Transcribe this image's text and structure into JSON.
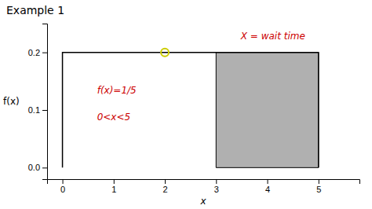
{
  "chart_data": {
    "type": "line",
    "title": "Example 1",
    "xlabel": "x",
    "ylabel": "f(x)",
    "xlim": [
      -0.3,
      5.8
    ],
    "ylim": [
      -0.02,
      0.25
    ],
    "xticks": [
      0,
      1,
      2,
      3,
      4,
      5
    ],
    "yticks": [
      {
        "value": 0.0,
        "label": "0.0"
      },
      0.1,
      0.2
    ],
    "series": [
      {
        "type": "area",
        "color": "#b0b0b0",
        "x": [
          3,
          3,
          5,
          5
        ],
        "values": [
          0,
          0.2,
          0.2,
          0
        ]
      },
      {
        "type": "line",
        "color": "#000000",
        "x": [
          0,
          0,
          5,
          5
        ],
        "values": [
          0,
          0.2,
          0.2,
          0
        ]
      },
      {
        "type": "scatter",
        "color": "#cccc00",
        "marker": "circle",
        "x": [
          2
        ],
        "values": [
          0.2
        ]
      }
    ],
    "annotations": [
      {
        "text": "X = wait time",
        "color": "#cc0000"
      },
      {
        "text": "f(x)=1/5",
        "color": "#cc0000"
      },
      {
        "text": "0<x<5",
        "color": "#cc0000"
      }
    ]
  }
}
